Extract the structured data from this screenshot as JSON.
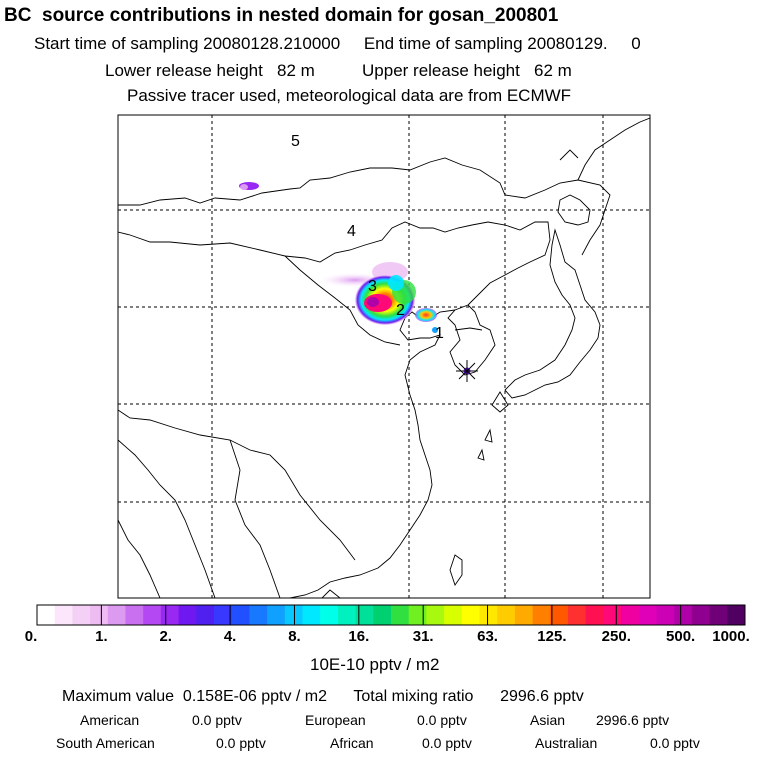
{
  "header": {
    "title": "BC  source contributions in nested domain for gosan_200801",
    "sampling": "Start time of sampling 20080128.210000     End time of sampling 20080129.     0",
    "release": "Lower release height   82 m          Upper release height   62 m",
    "tracer": "Passive tracer used, meteorological data are from ECMWF"
  },
  "map": {
    "labels": [
      "5",
      "4",
      "3",
      "2",
      "1"
    ],
    "receptor": "receptor-star-icon"
  },
  "colorbar": {
    "ticks": [
      "0.",
      "1.",
      "2.",
      "4.",
      "8.",
      "16.",
      "31.",
      "63.",
      "125.",
      "250.",
      "500.",
      "1000."
    ],
    "colors": [
      "#ffffff",
      "#fbe6fb",
      "#f5d0f6",
      "#eebbf2",
      "#dc9af0",
      "#c970f0",
      "#b448f2",
      "#9828f2",
      "#7018f0",
      "#5020f0",
      "#3838ff",
      "#2050ff",
      "#1878ff",
      "#10a0ff",
      "#08c8ff",
      "#00e8ff",
      "#00ffe8",
      "#00f0c0",
      "#00e098",
      "#00d070",
      "#30e040",
      "#70f020",
      "#a8f810",
      "#d8ff00",
      "#ffff00",
      "#ffe800",
      "#ffcc00",
      "#ffaa00",
      "#ff8000",
      "#ff5800",
      "#ff3030",
      "#ff1050",
      "#ff0878",
      "#f000a0",
      "#e000b8",
      "#cc00b4",
      "#b000a8",
      "#900090",
      "#700078",
      "#500060"
    ],
    "units": "10E-10 pptv / m2"
  },
  "stats": {
    "max_line": "Maximum value  0.158E-06 pptv / m2      Total mixing ratio      2996.6 pptv",
    "regions": [
      {
        "name": "American",
        "value": "0.0 pptv"
      },
      {
        "name": "European",
        "value": "0.0 pptv"
      },
      {
        "name": "Asian",
        "value": "2996.6 pptv"
      },
      {
        "name": "South American",
        "value": "0.0 pptv"
      },
      {
        "name": "African",
        "value": "0.0 pptv"
      },
      {
        "name": "Australian",
        "value": "0.0 pptv"
      }
    ]
  }
}
